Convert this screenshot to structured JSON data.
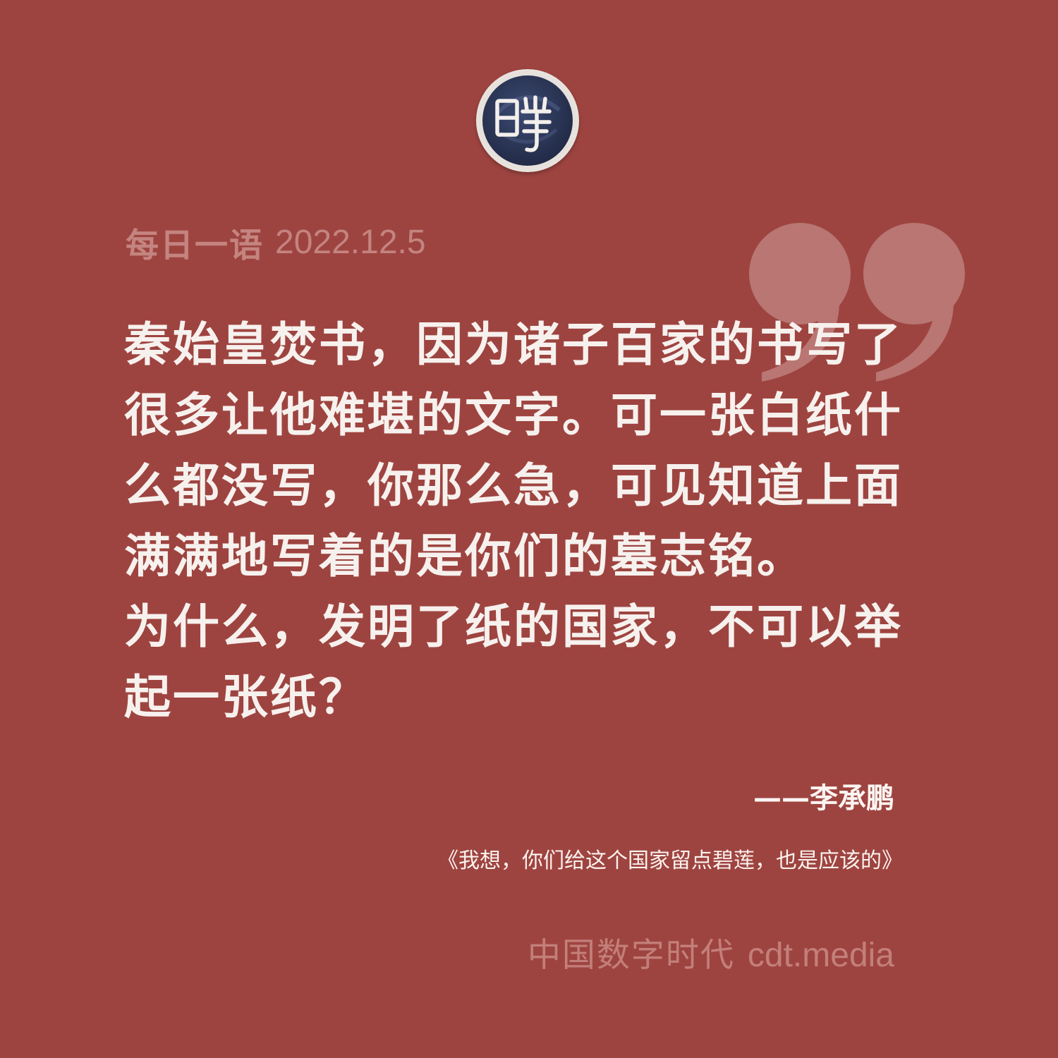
{
  "logo": {
    "icon": "cdt-seal-logo-icon"
  },
  "header": {
    "section_label": "每日一语",
    "date": "2022.12.5"
  },
  "quote": {
    "lines": [
      "秦始皇焚书，因为诸子百家的书写了",
      "很多让他难堪的文字。可一张白纸什",
      "么都没写，你那么急，可见知道上面",
      "满满地写着的是你们的墓志铭。",
      "为什么，发明了纸的国家，不可以举",
      "起一张纸？"
    ]
  },
  "attribution": {
    "author": "——李承鹏",
    "source": "《我想，你们给这个国家留点碧莲，也是应该的》"
  },
  "footer": {
    "brand_name": "中国数字时代",
    "brand_url": "cdt.media"
  },
  "colors": {
    "background": "#9e4440",
    "quote_text": "#f7f1ee",
    "muted_text": "#c48480",
    "logo_navy": "#2f3a5f"
  }
}
